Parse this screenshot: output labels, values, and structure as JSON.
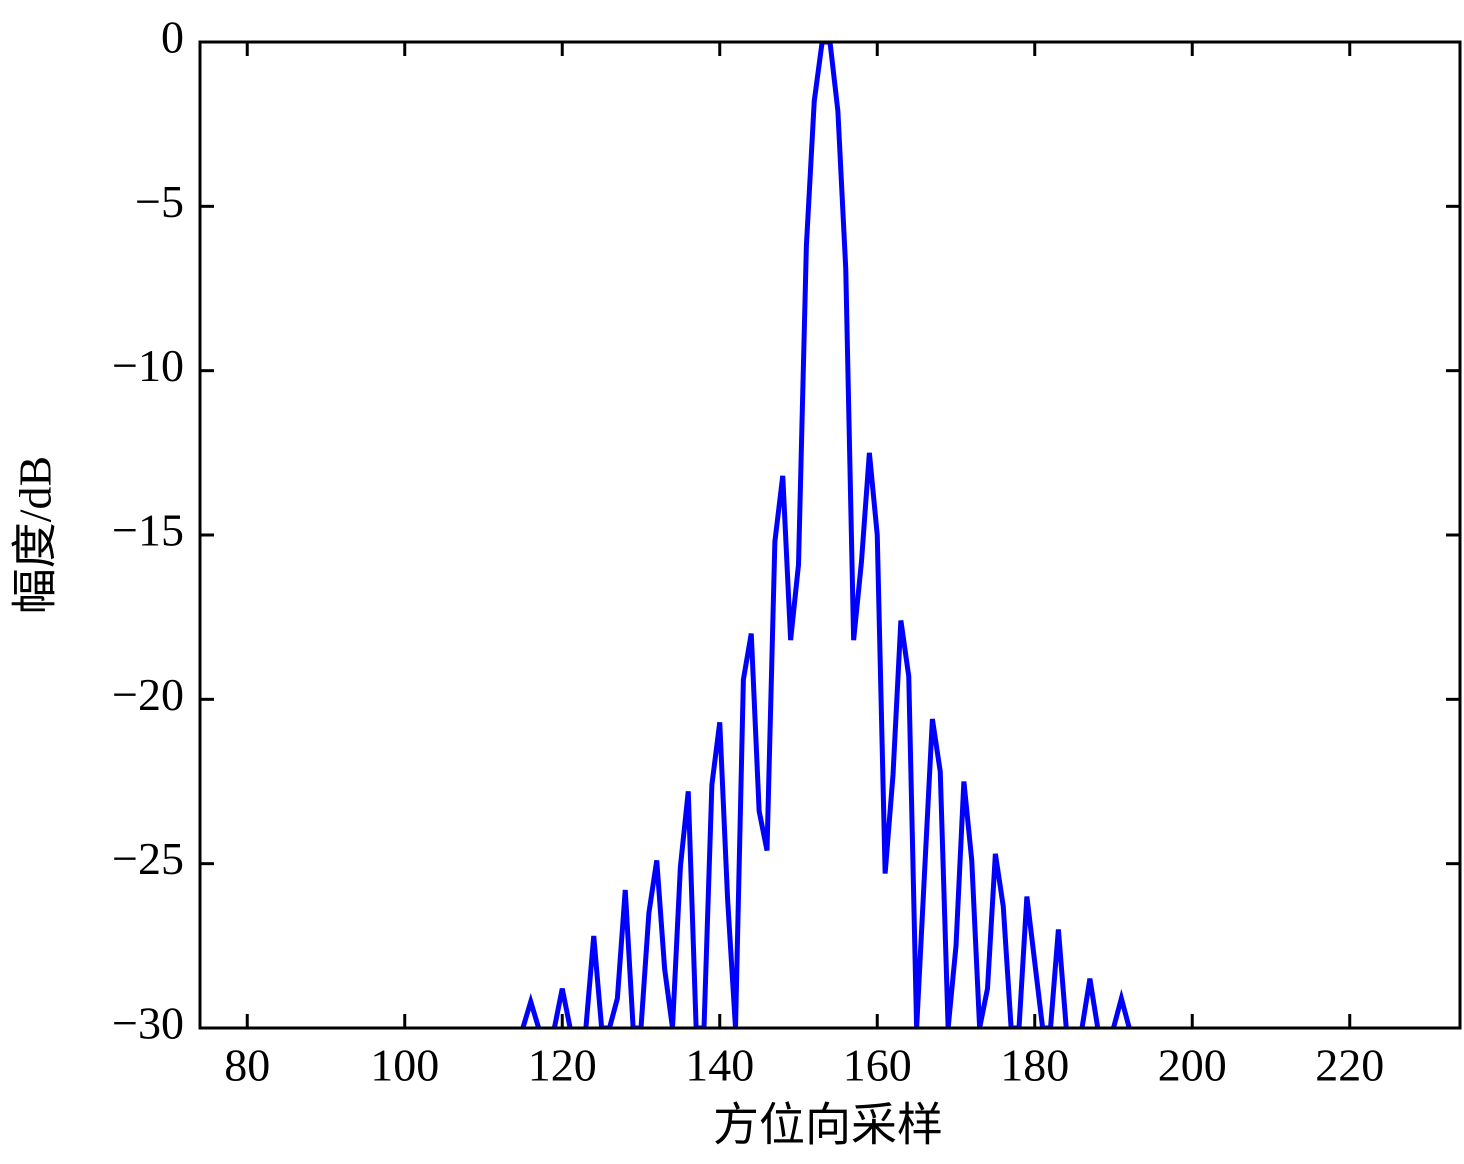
{
  "chart_data": {
    "type": "line",
    "xlabel": "方位向采样",
    "ylabel": "幅度/dB",
    "x": [
      115,
      116,
      117,
      118,
      119,
      120,
      121,
      122,
      123,
      124,
      125,
      126,
      127,
      128,
      129,
      130,
      131,
      132,
      133,
      134,
      135,
      136,
      137,
      138,
      139,
      140,
      141,
      142,
      143,
      144,
      145,
      146,
      147,
      148,
      149,
      150,
      151,
      152,
      153,
      154,
      155,
      156,
      157,
      158,
      159,
      160,
      161,
      162,
      163,
      164,
      165,
      166,
      167,
      168,
      169,
      170,
      171,
      172,
      173,
      174,
      175,
      176,
      177,
      178,
      179,
      180,
      181,
      182,
      183,
      184,
      185,
      186,
      187,
      188,
      189,
      190,
      191,
      192
    ],
    "values": [
      -30,
      -29.2,
      -30,
      null,
      -30,
      -28.8,
      -30,
      null,
      -30,
      -27.2,
      -30,
      -30,
      -29.1,
      -25.8,
      -30,
      -30,
      -26.5,
      -24.9,
      -28.2,
      -30,
      -25.1,
      -22.8,
      -30,
      -30,
      -22.6,
      -20.7,
      -26.1,
      -30,
      -19.4,
      -18,
      -23.4,
      -24.6,
      -15.2,
      -13.2,
      -18.2,
      -15.9,
      -6.2,
      -1.8,
      0,
      0,
      -2.1,
      -6.9,
      -18.2,
      -15.8,
      -12.5,
      -15,
      -25.3,
      -22.3,
      -17.6,
      -19.3,
      -30,
      -25.3,
      -20.6,
      -22.2,
      -30,
      -27.5,
      -22.5,
      -24.9,
      -30,
      -28.8,
      -24.7,
      -26.3,
      -30,
      -30,
      -26,
      -28,
      -30,
      -30,
      -27,
      -30,
      null,
      -30,
      -28.5,
      -30,
      null,
      -30,
      -29.1,
      -30
    ],
    "color": "#0000ff",
    "xlim": [
      74,
      234
    ],
    "xticks": [
      80,
      100,
      120,
      140,
      160,
      180,
      200,
      220
    ],
    "ylim": [
      -30,
      0
    ],
    "yticks": [
      {
        "value": -30,
        "label": "−30"
      },
      {
        "value": -25,
        "label": "−25"
      },
      {
        "value": -20,
        "label": "−20"
      },
      {
        "value": -15,
        "label": "−15"
      },
      {
        "value": -10,
        "label": "−10"
      },
      {
        "value": -5,
        "label": "−5"
      },
      0
    ]
  }
}
